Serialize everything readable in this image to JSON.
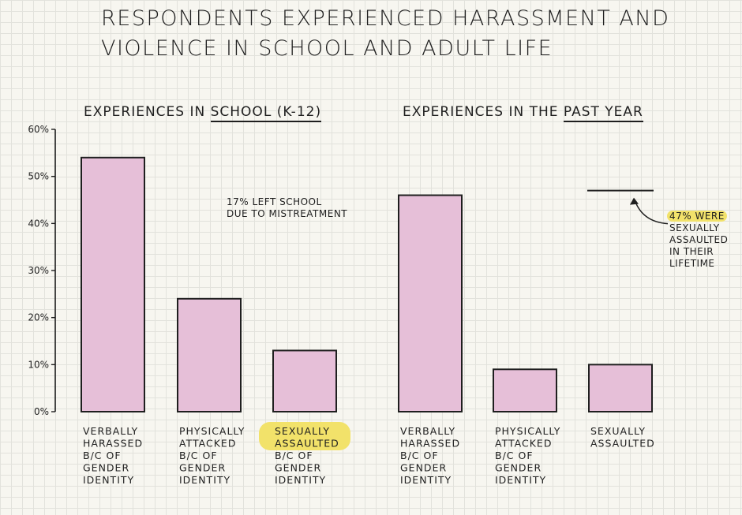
{
  "title_lines": [
    "RESPONDENTS EXPERIENCED HARASSMENT AND",
    "VIOLENCE IN SCHOOL AND ADULT LIFE"
  ],
  "school_heading": {
    "prefix": "EXPERIENCES IN",
    "emphasis": "SCHOOL (K-12)"
  },
  "pastyear_heading": {
    "prefix": "EXPERIENCES IN THE",
    "emphasis": "PAST YEAR"
  },
  "school_note": [
    "17% LEFT SCHOOL",
    "DUE TO MISTREATMENT"
  ],
  "lifetime_note": {
    "highlight": "47% WERE",
    "lines": [
      "SEXUALLY",
      "ASSAULTED",
      "IN THEIR",
      "LIFETIME"
    ]
  },
  "colors": {
    "bar": "#e6bfd8",
    "outline": "#1f1f1f",
    "highlight": "#f2e26a"
  },
  "chart_data": {
    "type": "bar",
    "ylim": [
      0,
      60
    ],
    "yticks": [
      "0%",
      "10%",
      "20%",
      "30%",
      "40%",
      "50%",
      "60%"
    ],
    "groups": [
      {
        "name": "EXPERIENCES IN SCHOOL (K-12)",
        "bars": [
          {
            "label": [
              "VERBALLY",
              "HARASSED",
              "B/C OF",
              "GENDER",
              "IDENTITY"
            ],
            "value": 54
          },
          {
            "label": [
              "PHYSICALLY",
              "ATTACKED",
              "B/C OF",
              "GENDER",
              "IDENTITY"
            ],
            "value": 24
          },
          {
            "label": [
              "SEXUALLY",
              "ASSAULTED",
              "B/C OF",
              "GENDER",
              "IDENTITY"
            ],
            "value": 13,
            "highlight_lines": 2
          }
        ]
      },
      {
        "name": "EXPERIENCES IN THE PAST YEAR",
        "bars": [
          {
            "label": [
              "VERBALLY",
              "HARASSED",
              "B/C OF",
              "GENDER",
              "IDENTITY"
            ],
            "value": 46
          },
          {
            "label": [
              "PHYSICALLY",
              "ATTACKED",
              "B/C OF",
              "GENDER",
              "IDENTITY"
            ],
            "value": 9
          },
          {
            "label": [
              "SEXUALLY",
              "ASSAULTED"
            ],
            "value": 10,
            "lifetime_value": 47
          }
        ]
      }
    ]
  }
}
